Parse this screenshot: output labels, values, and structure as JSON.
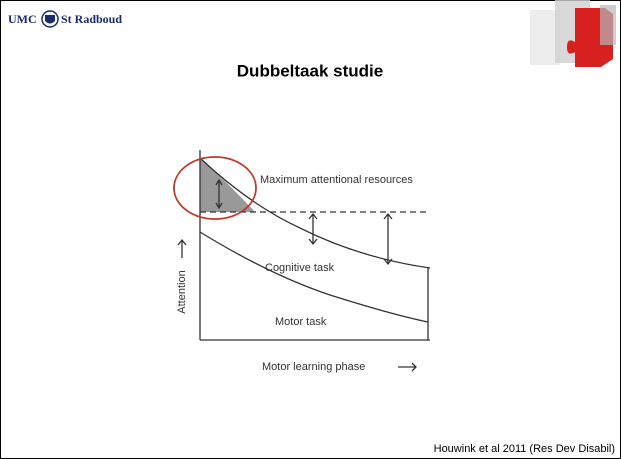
{
  "header": {
    "logo_left": "UMC",
    "logo_right": "St Radboud",
    "title": "Dubbeltaak studie"
  },
  "diagram": {
    "top_curve_label": "Maximum attentional resources",
    "middle_curve_label": "Cognitive task",
    "bottom_curve_label": "Motor task",
    "y_axis_label": "Attention",
    "x_axis_label": "Motor learning phase"
  },
  "footer": {
    "citation": "Houwink et al 2011 (Res Dev Disabil)"
  }
}
